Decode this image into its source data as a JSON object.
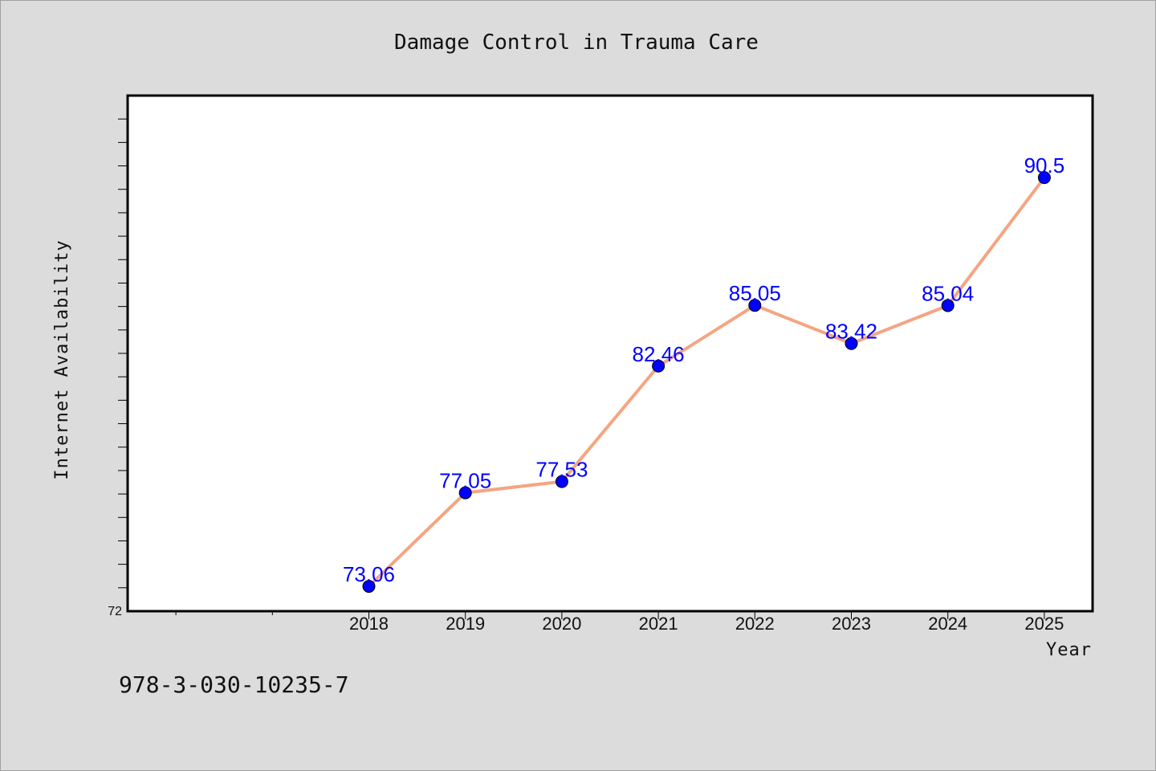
{
  "chart_data": {
    "type": "line",
    "title": "Damage Control in Trauma Care",
    "xlabel": "Year",
    "ylabel": "Internet Availability",
    "categories": [
      "2018",
      "2019",
      "2020",
      "2021",
      "2022",
      "2023",
      "2024",
      "2025"
    ],
    "values": [
      73.06,
      77.05,
      77.53,
      82.46,
      85.05,
      83.42,
      85.04,
      90.5
    ],
    "data_labels": [
      "73.06",
      "77.05",
      "77.53",
      "82.46",
      "85.05",
      "83.42",
      "85.04",
      "90.5"
    ],
    "x_axis_years_range": [
      2015.5,
      2025.5
    ],
    "ylim": [
      72,
      94
    ],
    "y_tick_labels": [
      "72"
    ],
    "grid": false,
    "line_color": "#f4a582",
    "marker_color": "#0000ff",
    "label_color": "#0000ff",
    "plot_background": "#ffffff",
    "figure_background": "#dcdcdc"
  },
  "footer_text": "978-3-030-10235-7"
}
